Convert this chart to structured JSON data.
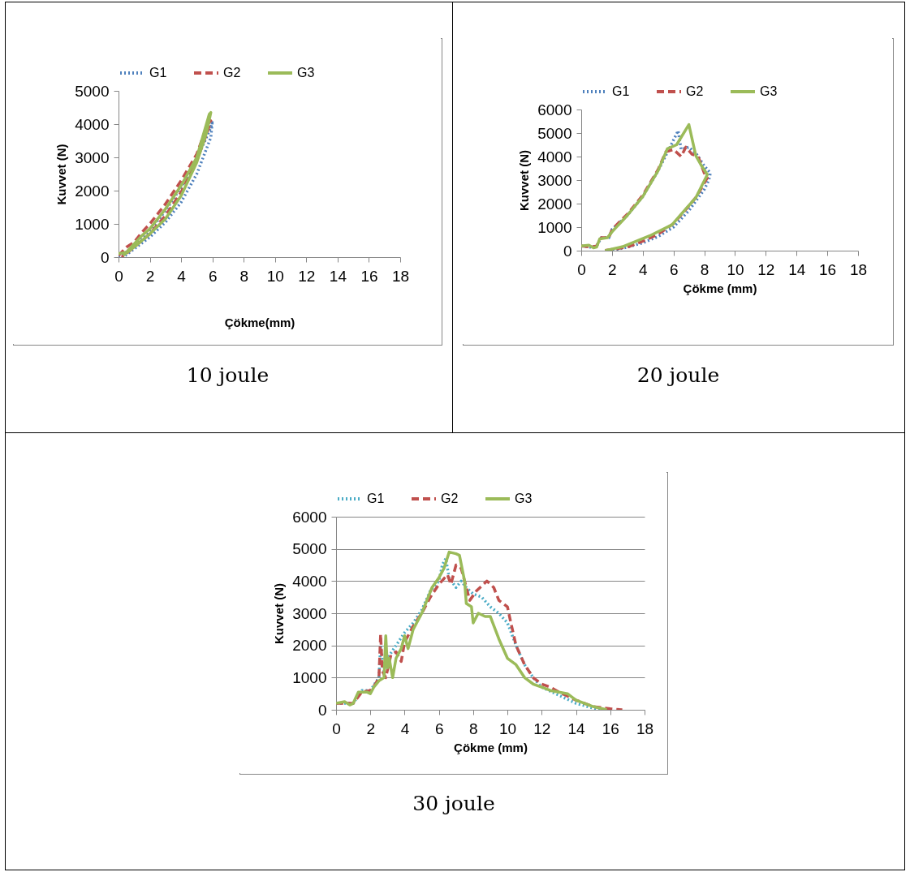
{
  "chart_data": [
    {
      "type": "line",
      "xlabel": "Çökme(mm)",
      "ylabel": "Kuvvet (N)",
      "xlim": [
        0,
        18
      ],
      "xticks": [
        0,
        2,
        4,
        6,
        8,
        10,
        12,
        14,
        16,
        18
      ],
      "ylim": [
        0,
        5000
      ],
      "yticks": [
        0,
        1000,
        2000,
        3000,
        4000,
        5000
      ],
      "grid": false,
      "legend": "top",
      "annotations": [
        "10 joule"
      ],
      "series": [
        {
          "name": "G1",
          "color": "#4f81bd",
          "line_style": "dotted",
          "x": [
            0,
            0.5,
            1,
            2,
            3,
            4,
            5,
            5.9,
            6.0,
            5.9,
            5,
            4,
            3,
            2,
            1,
            0.3
          ],
          "values": [
            0,
            150,
            350,
            800,
            1400,
            2100,
            2950,
            3900,
            4100,
            3600,
            2500,
            1650,
            1050,
            600,
            250,
            0
          ]
        },
        {
          "name": "G2",
          "color": "#c0504d",
          "line_style": "dashed",
          "x": [
            0,
            0.5,
            1,
            1.5,
            2,
            3,
            4,
            5,
            5.7,
            5.9,
            5.7,
            5,
            4,
            3,
            2,
            1,
            0.2
          ],
          "values": [
            50,
            300,
            450,
            750,
            1000,
            1600,
            2300,
            3100,
            4000,
            4100,
            3800,
            2900,
            1950,
            1250,
            700,
            300,
            0
          ]
        },
        {
          "name": "G3",
          "color": "#9bbb59",
          "line_style": "solid",
          "x": [
            0,
            0.5,
            1,
            1.5,
            2,
            3,
            4,
            5,
            5.8,
            5.9,
            5.6,
            5,
            4,
            3,
            2,
            1,
            0.3
          ],
          "values": [
            100,
            150,
            400,
            650,
            850,
            1450,
            2150,
            3000,
            4300,
            4350,
            3700,
            2850,
            1850,
            1150,
            700,
            300,
            50
          ]
        }
      ]
    },
    {
      "type": "line",
      "xlabel": "Çökme (mm)",
      "ylabel": "Kuvvet (N)",
      "xlim": [
        0,
        18
      ],
      "xticks": [
        0,
        2,
        4,
        6,
        8,
        10,
        12,
        14,
        16,
        18
      ],
      "ylim": [
        0,
        6000
      ],
      "yticks": [
        0,
        1000,
        2000,
        3000,
        4000,
        5000,
        6000
      ],
      "grid": false,
      "legend": "top",
      "annotations": [
        "20 joule"
      ],
      "series": [
        {
          "name": "G1",
          "color": "#4f81bd",
          "line_style": "dotted",
          "x": [
            0,
            0.6,
            1,
            1.3,
            1.8,
            2,
            3,
            4,
            5,
            5.7,
            6,
            6.3,
            6.5,
            7,
            7.5,
            8,
            8.4,
            8.3,
            8,
            7,
            6,
            5,
            4,
            3,
            2
          ],
          "values": [
            200,
            150,
            200,
            550,
            550,
            900,
            1500,
            2300,
            3400,
            4300,
            4700,
            5100,
            4300,
            4400,
            4100,
            3600,
            3300,
            3000,
            2600,
            1700,
            1000,
            600,
            330,
            150,
            0
          ]
        },
        {
          "name": "G2",
          "color": "#c0504d",
          "line_style": "dashed",
          "x": [
            0,
            0.6,
            1,
            1.3,
            1.8,
            2,
            3,
            4,
            5,
            5.5,
            6,
            6.5,
            6.8,
            7.2,
            7.6,
            8,
            8.2,
            7.5,
            7,
            6,
            5,
            4,
            3,
            1.5
          ],
          "values": [
            200,
            150,
            200,
            550,
            550,
            900,
            1550,
            2350,
            3450,
            4200,
            4300,
            4000,
            4400,
            4100,
            4000,
            3300,
            3100,
            2300,
            1900,
            1150,
            700,
            400,
            150,
            0
          ]
        },
        {
          "name": "G3",
          "color": "#9bbb59",
          "line_style": "solid",
          "x": [
            0,
            0.5,
            0.8,
            1,
            1.2,
            1.7,
            2,
            3,
            4,
            5,
            5.6,
            6.2,
            7.0,
            7.45,
            7.8,
            8.2,
            7.45,
            6.9,
            5.9,
            4.45,
            2.7,
            1.55
          ],
          "values": [
            200,
            230,
            120,
            150,
            500,
            550,
            800,
            1500,
            2300,
            3400,
            4330,
            4500,
            5360,
            4040,
            3630,
            3230,
            2250,
            1850,
            1100,
            630,
            170,
            0
          ]
        }
      ]
    },
    {
      "type": "line",
      "xlabel": "Çökme (mm)",
      "ylabel": "Kuvvet (N)",
      "xlim": [
        0,
        18
      ],
      "xticks": [
        0,
        2,
        4,
        6,
        8,
        10,
        12,
        14,
        16,
        18
      ],
      "ylim": [
        0,
        6000
      ],
      "yticks": [
        0,
        1000,
        2000,
        3000,
        4000,
        5000,
        6000
      ],
      "grid": "y",
      "legend": "top",
      "annotations": [
        "30 joule"
      ],
      "series": [
        {
          "name": "G1",
          "color": "#4bacc6",
          "line_style": "dotted",
          "x": [
            0,
            1,
            1.5,
            2,
            2.5,
            2.6,
            2.8,
            3,
            3.5,
            4,
            4.5,
            5,
            5.5,
            6,
            6.2,
            6.4,
            6.6,
            7,
            7.3,
            7.6,
            8,
            8.5,
            9,
            9.5,
            10,
            10.5,
            11,
            11.5,
            12,
            13,
            14,
            15,
            15.5
          ],
          "values": [
            200,
            200,
            600,
            600,
            1000,
            2000,
            1200,
            1600,
            2000,
            2400,
            2700,
            3100,
            3700,
            4000,
            4500,
            4700,
            4100,
            3800,
            4000,
            3800,
            3600,
            3500,
            3200,
            3000,
            2700,
            2000,
            1400,
            1000,
            700,
            450,
            200,
            50,
            0
          ]
        },
        {
          "name": "G2",
          "color": "#c0504d",
          "line_style": "dashed",
          "x": [
            0,
            1,
            1.5,
            2,
            2.3,
            2.5,
            2.6,
            2.7,
            2.9,
            3.2,
            3.5,
            3.8,
            4,
            4.5,
            5,
            5.5,
            6,
            6.5,
            6.7,
            7,
            7.3,
            7.5,
            7.8,
            8.2,
            8.8,
            9.2,
            9.5,
            10,
            10.2,
            10.5,
            11,
            11.5,
            12,
            12.5,
            13,
            14,
            15,
            16,
            16.7
          ],
          "values": [
            200,
            200,
            550,
            600,
            800,
            1000,
            2350,
            1200,
            1000,
            1700,
            1800,
            1500,
            2100,
            2600,
            3000,
            3500,
            3900,
            4200,
            3900,
            4500,
            4400,
            4000,
            3400,
            3700,
            4000,
            3800,
            3400,
            3200,
            2700,
            2000,
            1400,
            1000,
            800,
            700,
            550,
            300,
            100,
            30,
            0
          ]
        },
        {
          "name": "G3",
          "color": "#9bbb59",
          "line_style": "solid",
          "x": [
            0,
            0.5,
            0.8,
            1,
            1.3,
            1.8,
            2,
            2.2,
            2.5,
            2.8,
            2.9,
            3,
            3.1,
            3.3,
            3.5,
            3.8,
            4,
            4.2,
            4.5,
            5,
            5.3,
            5.6,
            6,
            6.3,
            6.6,
            7,
            7.2,
            7.5,
            7.6,
            7.9,
            8,
            8.3,
            8.7,
            9,
            9.5,
            10,
            10.5,
            11,
            11.5,
            12,
            12.5,
            13,
            13.5,
            14,
            15,
            15.8
          ],
          "values": [
            200,
            250,
            150,
            200,
            550,
            550,
            500,
            700,
            900,
            1000,
            2300,
            1300,
            1600,
            1000,
            1600,
            1900,
            2300,
            1900,
            2500,
            3000,
            3400,
            3800,
            4100,
            4400,
            4900,
            4850,
            4800,
            4000,
            3300,
            3200,
            2700,
            3000,
            2900,
            2900,
            2200,
            1600,
            1400,
            1000,
            800,
            700,
            600,
            550,
            500,
            300,
            100,
            0
          ]
        }
      ]
    }
  ]
}
